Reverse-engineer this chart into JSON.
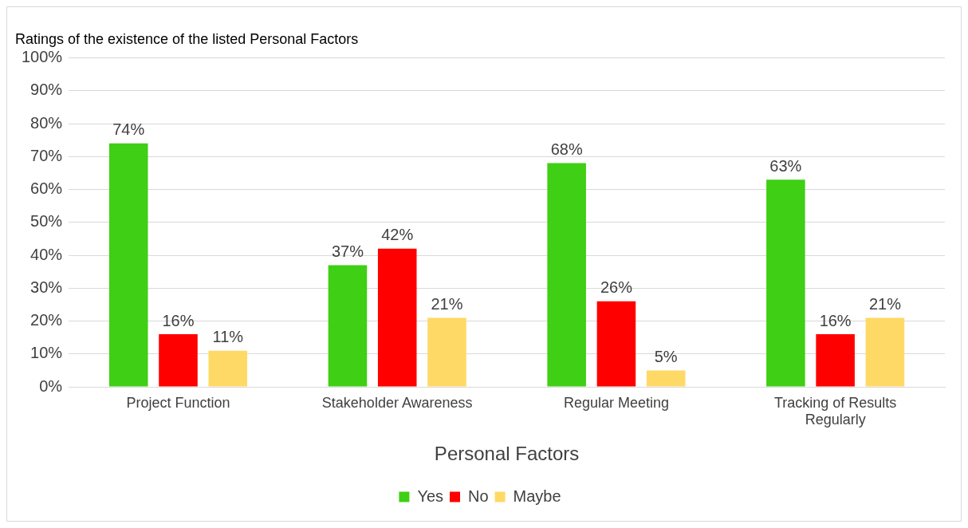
{
  "chart_data": {
    "type": "bar",
    "title": "Ratings of the existence of the listed Personal Factors",
    "xlabel": "Personal Factors",
    "categories": [
      "Project Function",
      "Stakeholder Awareness",
      "Regular Meeting",
      "Tracking of Results Regularly"
    ],
    "series": [
      {
        "name": "Yes",
        "color": "#3fcf14",
        "values": [
          74,
          37,
          68,
          63
        ],
        "value_labels": [
          "74%",
          "37%",
          "68%",
          "63%"
        ]
      },
      {
        "name": "No",
        "color": "#ff0000",
        "values": [
          16,
          42,
          26,
          16
        ],
        "value_labels": [
          "16%",
          "42%",
          "26%",
          "16%"
        ]
      },
      {
        "name": "Maybe",
        "color": "#ffd966",
        "values": [
          11,
          21,
          5,
          21
        ],
        "value_labels": [
          "11%",
          "21%",
          "5%",
          "21%"
        ]
      }
    ],
    "ylim": [
      0,
      100
    ],
    "yticks": [
      {
        "value": 0,
        "label": "0%"
      },
      {
        "value": 10,
        "label": "10%"
      },
      {
        "value": 20,
        "label": "20%"
      },
      {
        "value": 30,
        "label": "30%"
      },
      {
        "value": 40,
        "label": "40%"
      },
      {
        "value": 50,
        "label": "50%"
      },
      {
        "value": 60,
        "label": "60%"
      },
      {
        "value": 70,
        "label": "70%"
      },
      {
        "value": 80,
        "label": "80%"
      },
      {
        "value": 90,
        "label": "90%"
      },
      {
        "value": 100,
        "label": "100%"
      }
    ],
    "grid": "y",
    "legend": "bottom"
  }
}
